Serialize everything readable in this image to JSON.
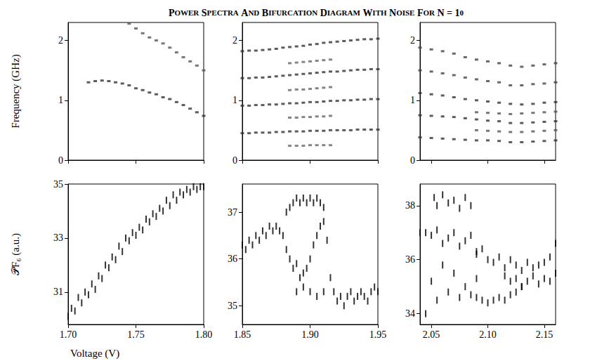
{
  "title": "POWER SPECTRA AND BIFURCATION DIAGRAM WITH NOISE FOR N = 10",
  "x_label": "Voltage (V)",
  "chart_data": [
    {
      "type": "scatter",
      "marker": "block",
      "grid": false,
      "tick_labels": "y",
      "y_label": "Frequency (GHz)",
      "xlim": [
        1.7,
        1.8
      ],
      "xticks": [
        1.7,
        1.75,
        1.8
      ],
      "ylim": [
        0,
        2.3
      ],
      "yticks": [
        0,
        1,
        2
      ],
      "series": [
        {
          "color": "#333333",
          "x": [
            1.715,
            1.72,
            1.725,
            1.73,
            1.735,
            1.74,
            1.745,
            1.75,
            1.755,
            1.76,
            1.765,
            1.77,
            1.775,
            1.78,
            1.785,
            1.79,
            1.795,
            1.8
          ],
          "values": [
            1.3,
            1.32,
            1.33,
            1.32,
            1.3,
            1.28,
            1.25,
            1.2,
            1.17,
            1.13,
            1.1,
            1.05,
            1.02,
            0.97,
            0.92,
            0.86,
            0.8,
            0.74
          ]
        },
        {
          "color": "#555555",
          "x": [
            1.745,
            1.75,
            1.755,
            1.76,
            1.765,
            1.77,
            1.775,
            1.78,
            1.785,
            1.79,
            1.795,
            1.8
          ],
          "values": [
            2.28,
            2.2,
            2.12,
            2.05,
            2.0,
            1.95,
            1.88,
            1.8,
            1.72,
            1.65,
            1.58,
            1.5
          ]
        }
      ]
    },
    {
      "type": "scatter",
      "marker": "block",
      "grid": false,
      "tick_labels": "y",
      "xlim": [
        1.85,
        1.95
      ],
      "xticks": [
        1.85,
        1.9,
        1.95
      ],
      "ylim": [
        0,
        2.3
      ],
      "yticks": [
        0,
        1,
        2
      ],
      "series": [
        {
          "color": "#333333",
          "x": [
            1.85,
            1.855,
            1.86,
            1.865,
            1.87,
            1.875,
            1.88,
            1.885,
            1.89,
            1.895,
            1.9,
            1.905,
            1.91,
            1.915,
            1.92,
            1.925,
            1.93,
            1.935,
            1.94,
            1.945,
            1.95
          ],
          "values": [
            0.45,
            0.45,
            0.46,
            0.46,
            0.46,
            0.47,
            0.47,
            0.48,
            0.48,
            0.48,
            0.49,
            0.49,
            0.49,
            0.5,
            0.5,
            0.5,
            0.5,
            0.51,
            0.51,
            0.51,
            0.51
          ]
        },
        {
          "color": "#333333",
          "x": [
            1.85,
            1.855,
            1.86,
            1.865,
            1.87,
            1.875,
            1.88,
            1.885,
            1.89,
            1.895,
            1.9,
            1.905,
            1.91,
            1.915,
            1.92,
            1.925,
            1.93,
            1.935,
            1.94,
            1.945,
            1.95
          ],
          "values": [
            0.91,
            0.91,
            0.92,
            0.92,
            0.93,
            0.93,
            0.94,
            0.95,
            0.95,
            0.96,
            0.97,
            0.97,
            0.98,
            0.99,
            0.99,
            1.0,
            1.0,
            1.01,
            1.01,
            1.02,
            1.02
          ]
        },
        {
          "color": "#333333",
          "x": [
            1.85,
            1.855,
            1.86,
            1.865,
            1.87,
            1.875,
            1.88,
            1.885,
            1.89,
            1.895,
            1.9,
            1.905,
            1.91,
            1.915,
            1.92,
            1.925,
            1.93,
            1.935,
            1.94,
            1.945,
            1.95
          ],
          "values": [
            1.37,
            1.37,
            1.38,
            1.38,
            1.39,
            1.4,
            1.41,
            1.42,
            1.43,
            1.44,
            1.45,
            1.46,
            1.47,
            1.48,
            1.48,
            1.49,
            1.5,
            1.51,
            1.51,
            1.52,
            1.52
          ]
        },
        {
          "color": "#333333",
          "x": [
            1.85,
            1.855,
            1.86,
            1.865,
            1.87,
            1.875,
            1.88,
            1.885,
            1.89,
            1.895,
            1.9,
            1.905,
            1.91,
            1.915,
            1.92,
            1.925,
            1.93,
            1.935,
            1.94,
            1.945,
            1.95
          ],
          "values": [
            1.82,
            1.83,
            1.83,
            1.84,
            1.85,
            1.86,
            1.88,
            1.89,
            1.9,
            1.91,
            1.93,
            1.94,
            1.96,
            1.97,
            1.98,
            1.99,
            2.0,
            2.01,
            2.02,
            2.02,
            2.03
          ]
        },
        {
          "color": "#666666",
          "x": [
            1.885,
            1.89,
            1.895,
            1.9,
            1.905,
            1.91,
            1.915,
            1.885,
            1.89,
            1.895,
            1.9,
            1.905,
            1.91,
            1.915,
            1.885,
            1.89,
            1.895,
            1.9,
            1.905,
            1.91,
            1.915,
            1.885,
            1.89,
            1.895,
            1.9,
            1.905,
            1.91,
            1.915
          ],
          "values": [
            0.24,
            0.24,
            0.24,
            0.25,
            0.25,
            0.25,
            0.25,
            0.71,
            0.71,
            0.72,
            0.72,
            0.73,
            0.73,
            0.74,
            1.17,
            1.18,
            1.18,
            1.19,
            1.2,
            1.21,
            1.22,
            1.62,
            1.63,
            1.64,
            1.65,
            1.66,
            1.67,
            1.68
          ]
        }
      ]
    },
    {
      "type": "scatter",
      "marker": "block",
      "grid": false,
      "tick_labels": "y",
      "xlim": [
        2.04,
        2.16
      ],
      "xticks": [
        2.05,
        2.1,
        2.15
      ],
      "ylim": [
        0,
        2.3
      ],
      "yticks": [
        0,
        1,
        2
      ],
      "series": [
        {
          "color": "#333333",
          "x": [
            2.04,
            2.05,
            2.06,
            2.07,
            2.08,
            2.09,
            2.1,
            2.11,
            2.12,
            2.13,
            2.14,
            2.15,
            2.16
          ],
          "values": [
            0.38,
            0.37,
            0.36,
            0.35,
            0.34,
            0.33,
            0.33,
            0.32,
            0.3,
            0.3,
            0.31,
            0.32,
            0.33
          ]
        },
        {
          "color": "#333333",
          "x": [
            2.04,
            2.05,
            2.06,
            2.07,
            2.08,
            2.09,
            2.1,
            2.11,
            2.12,
            2.13,
            2.14,
            2.15,
            2.16
          ],
          "values": [
            0.75,
            0.74,
            0.73,
            0.72,
            0.7,
            0.68,
            0.66,
            0.65,
            0.62,
            0.62,
            0.63,
            0.64,
            0.65
          ]
        },
        {
          "color": "#333333",
          "x": [
            2.04,
            2.05,
            2.06,
            2.07,
            2.08,
            2.09,
            2.1,
            2.11,
            2.12,
            2.13,
            2.14,
            2.15,
            2.16
          ],
          "values": [
            1.12,
            1.1,
            1.08,
            1.05,
            1.02,
            1.0,
            0.98,
            0.96,
            0.94,
            0.93,
            0.94,
            0.96,
            0.97
          ]
        },
        {
          "color": "#444444",
          "x": [
            2.04,
            2.05,
            2.06,
            2.07,
            2.08,
            2.09,
            2.1,
            2.11,
            2.12,
            2.13,
            2.14,
            2.15,
            2.16
          ],
          "values": [
            1.5,
            1.48,
            1.45,
            1.42,
            1.38,
            1.35,
            1.32,
            1.3,
            1.25,
            1.25,
            1.27,
            1.28,
            1.3
          ]
        },
        {
          "color": "#444444",
          "x": [
            2.04,
            2.05,
            2.06,
            2.07,
            2.08,
            2.09,
            2.1,
            2.11,
            2.12,
            2.13,
            2.14,
            2.15,
            2.16
          ],
          "values": [
            1.88,
            1.85,
            1.82,
            1.78,
            1.72,
            1.68,
            1.65,
            1.62,
            1.58,
            1.56,
            1.58,
            1.6,
            1.62
          ]
        },
        {
          "color": "#555555",
          "x": [
            2.09,
            2.1,
            2.11,
            2.12,
            2.13,
            2.14,
            2.15,
            2.16,
            2.09,
            2.1,
            2.11,
            2.12,
            2.13,
            2.14,
            2.15,
            2.16
          ],
          "values": [
            0.5,
            0.49,
            0.48,
            0.47,
            0.47,
            0.48,
            0.49,
            0.5,
            0.8,
            0.79,
            0.78,
            0.77,
            0.78,
            0.79,
            0.8,
            0.81
          ]
        }
      ]
    },
    {
      "type": "scatter",
      "marker": "dash",
      "grid": false,
      "y_label": "𝒫F₆ (a.u.)",
      "xlim": [
        1.7,
        1.8
      ],
      "xticks": [
        {
          "value": 1.7,
          "label": "1.70"
        },
        1.75,
        {
          "value": 1.8,
          "label": "1.80"
        }
      ],
      "ylim": [
        29.8,
        35
      ],
      "yticks": [
        31,
        33,
        35
      ],
      "series": [
        {
          "color": "#000000",
          "x": [
            1.7,
            1.7025,
            1.705,
            1.7075,
            1.71,
            1.7125,
            1.715,
            1.7175,
            1.72,
            1.7225,
            1.725,
            1.7275,
            1.73,
            1.7325,
            1.735,
            1.7375,
            1.74,
            1.7425,
            1.745,
            1.7475,
            1.75,
            1.7525,
            1.755,
            1.7575,
            1.76,
            1.7625,
            1.765,
            1.7675,
            1.77,
            1.7725,
            1.775,
            1.7775,
            1.78,
            1.7825,
            1.785,
            1.7875,
            1.79,
            1.7925,
            1.795,
            1.7975,
            1.8
          ],
          "values": [
            30.1,
            30.4,
            30.3,
            30.8,
            30.6,
            31.0,
            30.9,
            31.3,
            31.1,
            31.6,
            31.5,
            32.0,
            31.9,
            32.3,
            32.2,
            32.7,
            32.5,
            33.0,
            32.9,
            33.2,
            33.1,
            33.4,
            33.3,
            33.7,
            33.6,
            33.9,
            33.8,
            34.1,
            34.0,
            34.4,
            34.2,
            34.6,
            34.4,
            34.7,
            34.6,
            34.8,
            34.7,
            34.9,
            34.8,
            34.9,
            34.9
          ]
        }
      ]
    },
    {
      "type": "scatter",
      "marker": "dash",
      "grid": false,
      "xlim": [
        1.85,
        1.95
      ],
      "xticks": [
        1.85,
        {
          "value": 1.9,
          "label": "1.90"
        },
        1.95
      ],
      "ylim": [
        34.6,
        37.6
      ],
      "yticks": [
        35,
        36,
        37
      ],
      "series": [
        {
          "color": "#000000",
          "x": [
            1.85,
            1.8525,
            1.855,
            1.8575,
            1.86,
            1.8625,
            1.865,
            1.8675,
            1.87,
            1.8725,
            1.875,
            1.8775,
            1.88
          ],
          "values": [
            36.3,
            36.2,
            36.4,
            36.3,
            36.5,
            36.4,
            36.6,
            36.5,
            36.7,
            36.6,
            36.7,
            36.6,
            36.5
          ]
        },
        {
          "color": "#000000",
          "x": [
            1.8825,
            1.885,
            1.8875,
            1.89,
            1.8925,
            1.895,
            1.8975,
            1.9,
            1.9025,
            1.905,
            1.9075,
            1.91
          ],
          "values": [
            37.0,
            37.1,
            37.2,
            37.3,
            37.2,
            37.3,
            37.2,
            37.3,
            37.2,
            37.3,
            37.2,
            37.1
          ]
        },
        {
          "color": "#000000",
          "x": [
            1.8825,
            1.885,
            1.8875,
            1.89,
            1.8925,
            1.895,
            1.8975,
            1.9,
            1.9025,
            1.905,
            1.9075,
            1.91
          ],
          "values": [
            36.2,
            36.0,
            35.8,
            35.9,
            35.6,
            35.7,
            35.8,
            36.0,
            36.3,
            36.5,
            36.7,
            36.8
          ]
        },
        {
          "color": "#000000",
          "x": [
            1.89,
            1.895,
            1.9,
            1.905,
            1.91
          ],
          "values": [
            35.3,
            35.4,
            35.3,
            35.2,
            35.3
          ]
        },
        {
          "color": "#000000",
          "x": [
            1.9125,
            1.915,
            1.9175,
            1.92,
            1.9225,
            1.925,
            1.9275,
            1.93,
            1.9325,
            1.935,
            1.9375,
            1.94,
            1.9425,
            1.945,
            1.9475,
            1.95
          ],
          "values": [
            36.4,
            35.6,
            35.3,
            35.1,
            35.2,
            35.0,
            35.2,
            35.3,
            35.1,
            35.2,
            35.3,
            35.2,
            35.1,
            35.3,
            35.4,
            35.3
          ]
        }
      ]
    },
    {
      "type": "scatter",
      "marker": "dash",
      "grid": false,
      "xlim": [
        2.04,
        2.16
      ],
      "xticks": [
        2.05,
        {
          "value": 2.1,
          "label": "2.10"
        },
        2.15
      ],
      "ylim": [
        33.6,
        38.8
      ],
      "yticks": [
        34,
        36,
        38
      ],
      "series": [
        {
          "color": "#000000",
          "x": [
            2.0525,
            2.055,
            2.06,
            2.065,
            2.07,
            2.075,
            2.08,
            2.085
          ],
          "values": [
            38.3,
            38.0,
            38.4,
            38.1,
            38.2,
            37.9,
            38.3,
            38.0
          ]
        },
        {
          "color": "#000000",
          "x": [
            2.04,
            2.045,
            2.05,
            2.055,
            2.06,
            2.065,
            2.07,
            2.075,
            2.08,
            2.085,
            2.09
          ],
          "values": [
            37.0,
            37.0,
            36.9,
            37.1,
            36.6,
            36.8,
            37.0,
            36.5,
            36.7,
            36.9,
            36.3
          ]
        },
        {
          "color": "#000000",
          "x": [
            2.045,
            2.05,
            2.055,
            2.06,
            2.065,
            2.07,
            2.075,
            2.08,
            2.085,
            2.09
          ],
          "values": [
            34.0,
            35.2,
            34.5,
            35.8,
            34.8,
            35.5,
            34.6,
            35.0,
            34.7,
            35.3
          ]
        },
        {
          "color": "#000000",
          "x": [
            2.09,
            2.095,
            2.1,
            2.105,
            2.11,
            2.115,
            2.12,
            2.125,
            2.13,
            2.135,
            2.14,
            2.145,
            2.15,
            2.155,
            2.16
          ],
          "values": [
            36.2,
            36.4,
            36.0,
            35.9,
            36.1,
            35.7,
            36.0,
            35.8,
            35.6,
            35.9,
            35.7,
            35.8,
            35.9,
            36.1,
            36.6
          ]
        },
        {
          "color": "#000000",
          "x": [
            2.09,
            2.095,
            2.1,
            2.105,
            2.11,
            2.115,
            2.12,
            2.125,
            2.13
          ],
          "values": [
            34.6,
            34.5,
            34.4,
            34.5,
            34.6,
            34.5,
            34.7,
            34.8,
            35.0
          ]
        },
        {
          "color": "#000000",
          "x": [
            2.115,
            2.12,
            2.125,
            2.13,
            2.135,
            2.14,
            2.145,
            2.15,
            2.155,
            2.16
          ],
          "values": [
            35.4,
            35.2,
            35.3,
            35.0,
            35.2,
            35.4,
            35.1,
            35.3,
            35.2,
            35.5
          ]
        }
      ]
    }
  ]
}
